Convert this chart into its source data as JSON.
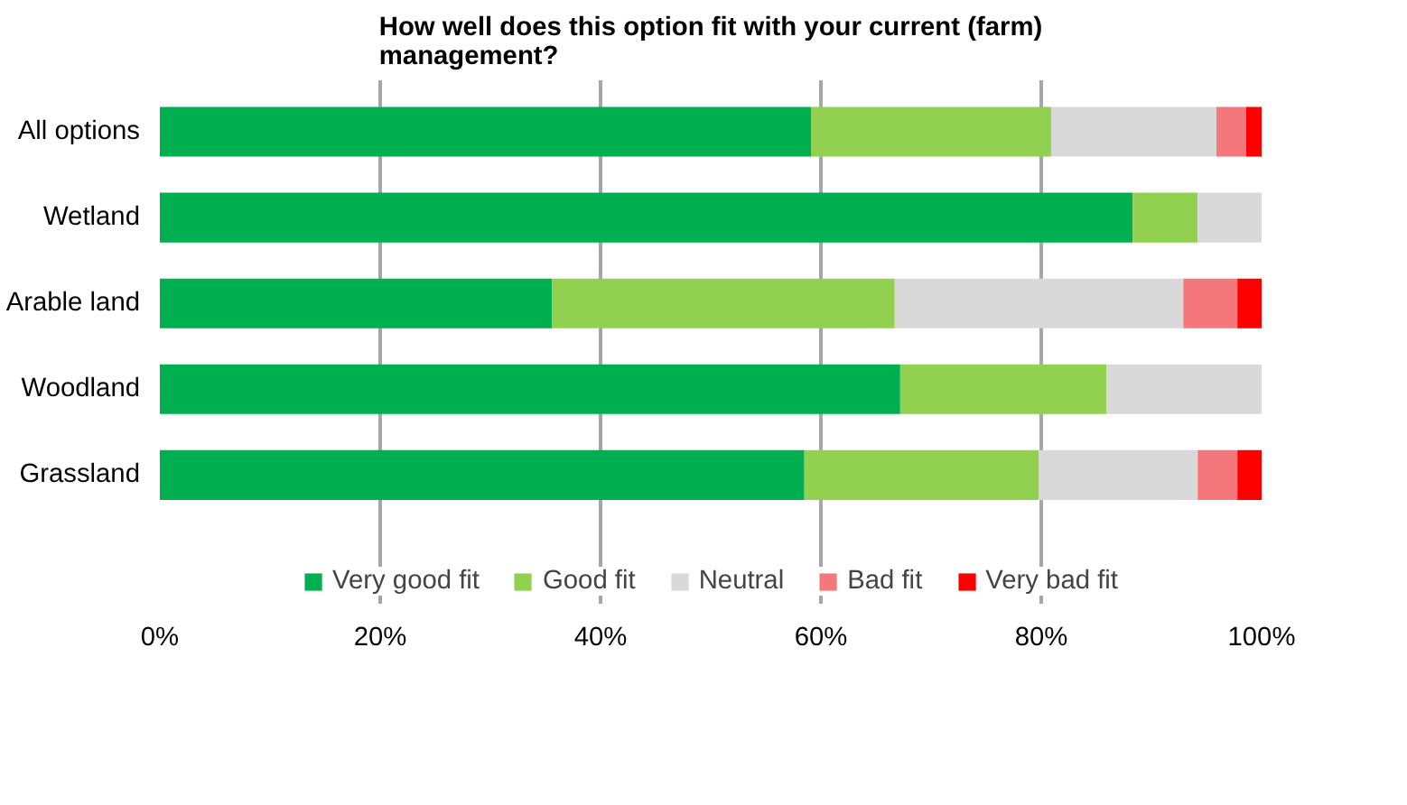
{
  "chart_data": {
    "type": "bar",
    "orientation": "horizontal",
    "stacked": true,
    "title": "How well does this option fit with your current (farm) management?",
    "categories": [
      "All options",
      "Wetland",
      "Arable land",
      "Woodland",
      "Grassland"
    ],
    "series": [
      {
        "name": "Very good fit",
        "color": "#00b050",
        "values": [
          59.1,
          88.3,
          35.6,
          67.2,
          58.5
        ]
      },
      {
        "name": "Good fit",
        "color": "#92d050",
        "values": [
          21.8,
          5.9,
          31.1,
          18.7,
          21.3
        ]
      },
      {
        "name": "Neutral",
        "color": "#d9d9d9",
        "values": [
          15.0,
          5.8,
          26.2,
          14.1,
          14.4
        ]
      },
      {
        "name": "Bad fit",
        "color": "#f4777b",
        "values": [
          2.7,
          null,
          4.9,
          null,
          3.6
        ]
      },
      {
        "name": "Very bad fit",
        "color": "#ff0000",
        "values": [
          1.4,
          null,
          2.2,
          null,
          2.2
        ]
      }
    ],
    "xlim": [
      0,
      100
    ],
    "xticks": [
      {
        "value": 0,
        "label": "0%"
      },
      {
        "value": 20,
        "label": "20%"
      },
      {
        "value": 40,
        "label": "40%"
      },
      {
        "value": 60,
        "label": "60%"
      },
      {
        "value": 80,
        "label": "80%"
      },
      {
        "value": 100,
        "label": "100%"
      }
    ],
    "grid": "x",
    "legend": "bottom"
  }
}
